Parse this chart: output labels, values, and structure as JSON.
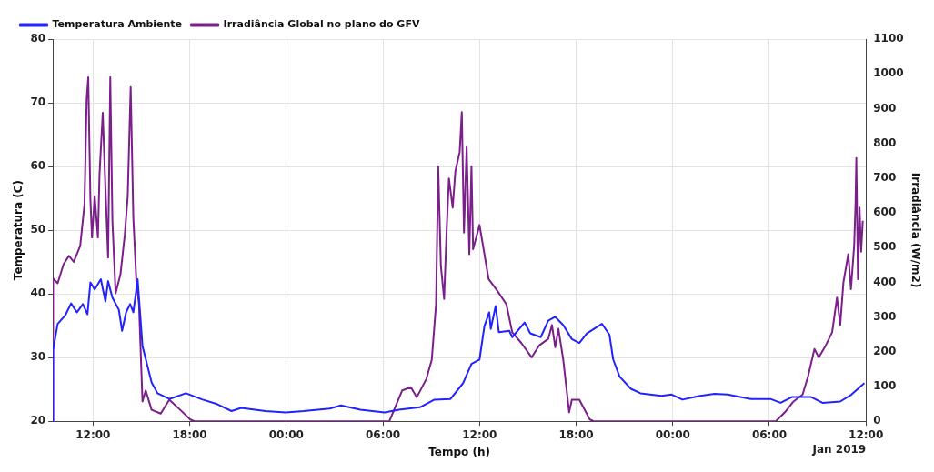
{
  "chart_data": {
    "type": "line",
    "xlabel": "Tempo (h)",
    "ylabel": "Temperatura (C)",
    "y2label": "Irradiância (W/m2)",
    "annotations": [
      "Jan 2019"
    ],
    "xlim": [
      "2019-01-01T09:30",
      "2019-01-03T12:00"
    ],
    "xticks": [
      {
        "value": "2019-01-01T12:00",
        "label": "12:00"
      },
      {
        "value": "2019-01-01T18:00",
        "label": "18:00"
      },
      {
        "value": "2019-01-02T00:00",
        "label": "00:00"
      },
      {
        "value": "2019-01-02T06:00",
        "label": "06:00"
      },
      {
        "value": "2019-01-02T12:00",
        "label": "12:00"
      },
      {
        "value": "2019-01-02T18:00",
        "label": "18:00"
      },
      {
        "value": "2019-01-03T00:00",
        "label": "00:00"
      },
      {
        "value": "2019-01-03T06:00",
        "label": "06:00"
      },
      {
        "value": "2019-01-03T12:00",
        "label": "12:00"
      }
    ],
    "ylim": [
      20,
      80
    ],
    "yticks": [
      20,
      30,
      40,
      50,
      60,
      70,
      80
    ],
    "y2lim": [
      0,
      1100
    ],
    "y2ticks": [
      0,
      100,
      200,
      300,
      400,
      500,
      600,
      700,
      800,
      900,
      1000,
      1100
    ],
    "grid": true,
    "legend": "top left",
    "marker": "none",
    "line_style": "solid",
    "series": [
      {
        "name": "Temperatura Ambiente",
        "color": "#2222ff",
        "x": [
          "2019-01-01T09:30",
          "2019-01-01T09:31",
          "2019-01-01T09:48",
          "2019-01-01T10:16",
          "2019-01-01T10:38",
          "2019-01-01T11:00",
          "2019-01-01T11:22",
          "2019-01-01T11:39",
          "2019-01-01T11:50",
          "2019-01-01T12:06",
          "2019-01-01T12:29",
          "2019-01-01T12:46",
          "2019-01-01T12:56",
          "2019-01-01T13:12",
          "2019-01-01T13:36",
          "2019-01-01T13:48",
          "2019-01-01T14:03",
          "2019-01-01T14:18",
          "2019-01-01T14:30",
          "2019-01-01T14:46",
          "2019-01-01T15:04",
          "2019-01-01T15:38",
          "2019-01-01T16:00",
          "2019-01-01T16:44",
          "2019-01-01T17:46",
          "2019-01-01T18:48",
          "2019-01-01T19:42",
          "2019-01-01T20:36",
          "2019-01-01T21:12",
          "2019-01-01T22:42",
          "2019-01-01T23:58",
          "2019-01-02T01:04",
          "2019-01-02T02:42",
          "2019-01-02T03:24",
          "2019-01-02T04:36",
          "2019-01-02T06:06",
          "2019-01-02T07:00",
          "2019-01-02T08:18",
          "2019-01-02T09:12",
          "2019-01-02T10:12",
          "2019-01-02T10:59",
          "2019-01-02T11:30",
          "2019-01-02T12:00",
          "2019-01-02T12:18",
          "2019-01-02T12:36",
          "2019-01-02T12:42",
          "2019-01-02T13:00",
          "2019-01-02T13:12",
          "2019-01-02T13:51",
          "2019-01-02T14:02",
          "2019-01-02T14:48",
          "2019-01-02T15:09",
          "2019-01-02T15:48",
          "2019-01-02T16:16",
          "2019-01-02T16:42",
          "2019-01-02T17:12",
          "2019-01-02T17:44",
          "2019-01-02T18:12",
          "2019-01-02T18:40",
          "2019-01-02T19:36",
          "2019-01-02T20:04",
          "2019-01-02T20:18",
          "2019-01-02T20:42",
          "2019-01-02T21:24",
          "2019-01-02T22:00",
          "2019-01-02T23:18",
          "2019-01-02T23:56",
          "2019-01-03T00:36",
          "2019-01-03T01:42",
          "2019-01-03T02:36",
          "2019-01-03T03:24",
          "2019-01-03T04:51",
          "2019-01-03T06:04",
          "2019-01-03T06:42",
          "2019-01-03T07:24",
          "2019-01-03T08:36",
          "2019-01-03T09:18",
          "2019-01-03T10:24",
          "2019-01-03T11:06",
          "2019-01-03T11:54"
        ],
        "values": [
          20,
          31.2,
          35.3,
          36.6,
          38.5,
          37.1,
          38.4,
          36.8,
          41.8,
          40.7,
          42.3,
          38.8,
          42.0,
          39.4,
          37.5,
          34.2,
          37.1,
          38.4,
          37.1,
          42.3,
          31.8,
          26.1,
          24.4,
          23.5,
          24.4,
          23.4,
          22.7,
          21.6,
          22.1,
          21.6,
          21.4,
          21.6,
          22.0,
          22.5,
          21.8,
          21.4,
          21.8,
          22.2,
          23.4,
          23.5,
          26.0,
          29.0,
          29.7,
          34.9,
          37.1,
          34.5,
          38.1,
          34.0,
          34.2,
          33.2,
          35.5,
          33.8,
          33.2,
          35.8,
          36.4,
          35.1,
          32.9,
          32.3,
          33.8,
          35.3,
          33.6,
          29.7,
          27.0,
          25.1,
          24.4,
          24.0,
          24.2,
          23.4,
          24.0,
          24.3,
          24.2,
          23.5,
          23.5,
          22.9,
          23.8,
          23.8,
          22.9,
          23.1,
          24.2,
          26.0
        ]
      },
      {
        "name": "Irradiância Global no plano do GFV",
        "color": "#7b1f8a",
        "axis": "y2",
        "x": [
          "2019-01-01T09:30",
          "2019-01-01T09:31",
          "2019-01-01T09:48",
          "2019-01-01T10:10",
          "2019-01-01T10:30",
          "2019-01-01T10:48",
          "2019-01-01T11:12",
          "2019-01-01T11:28",
          "2019-01-01T11:36",
          "2019-01-01T11:42",
          "2019-01-01T11:50",
          "2019-01-01T11:56",
          "2019-01-01T12:06",
          "2019-01-01T12:18",
          "2019-01-01T12:24",
          "2019-01-01T12:36",
          "2019-01-01T12:46",
          "2019-01-01T12:56",
          "2019-01-01T13:04",
          "2019-01-01T13:12",
          "2019-01-01T13:24",
          "2019-01-01T13:42",
          "2019-01-01T13:58",
          "2019-01-01T14:09",
          "2019-01-01T14:20",
          "2019-01-01T14:30",
          "2019-01-01T14:42",
          "2019-01-01T14:51",
          "2019-01-01T15:04",
          "2019-01-01T15:16",
          "2019-01-01T15:38",
          "2019-01-01T16:12",
          "2019-01-01T16:44",
          "2019-01-01T17:30",
          "2019-01-01T18:02",
          "2019-01-01T18:18",
          "2019-01-02T06:24",
          "2019-01-02T07:12",
          "2019-01-02T07:44",
          "2019-01-02T08:06",
          "2019-01-02T08:42",
          "2019-01-02T09:02",
          "2019-01-02T09:18",
          "2019-01-02T09:26",
          "2019-01-02T09:36",
          "2019-01-02T09:48",
          "2019-01-02T09:58",
          "2019-01-02T10:06",
          "2019-01-02T10:20",
          "2019-01-02T10:30",
          "2019-01-02T10:46",
          "2019-01-02T10:54",
          "2019-01-02T11:02",
          "2019-01-02T11:12",
          "2019-01-02T11:22",
          "2019-01-02T11:30",
          "2019-01-02T11:36",
          "2019-01-02T12:00",
          "2019-01-02T12:34",
          "2019-01-02T13:06",
          "2019-01-02T13:40",
          "2019-01-02T14:02",
          "2019-01-02T14:36",
          "2019-01-02T15:14",
          "2019-01-02T15:42",
          "2019-01-02T16:16",
          "2019-01-02T16:30",
          "2019-01-02T16:42",
          "2019-01-02T16:54",
          "2019-01-02T17:12",
          "2019-01-02T17:34",
          "2019-01-02T17:44",
          "2019-01-02T18:12",
          "2019-01-02T18:51",
          "2019-01-02T19:06",
          "2019-01-03T06:24",
          "2019-01-03T06:58",
          "2019-01-03T07:30",
          "2019-01-03T08:04",
          "2019-01-03T08:24",
          "2019-01-03T08:48",
          "2019-01-03T09:04",
          "2019-01-03T09:30",
          "2019-01-03T09:54",
          "2019-01-03T10:12",
          "2019-01-03T10:24",
          "2019-01-03T10:36",
          "2019-01-03T10:54",
          "2019-01-03T11:04",
          "2019-01-03T11:16",
          "2019-01-03T11:21",
          "2019-01-03T11:24",
          "2019-01-03T11:30",
          "2019-01-03T11:36",
          "2019-01-03T11:42",
          "2019-01-03T11:48"
        ],
        "values": [
          0,
          411,
          397,
          452,
          476,
          459,
          505,
          624,
          926,
          990,
          639,
          529,
          648,
          529,
          711,
          888,
          672,
          471,
          990,
          577,
          368,
          423,
          536,
          648,
          962,
          584,
          392,
          337,
          57,
          89,
          33,
          22,
          62,
          29,
          5,
          0,
          0,
          89,
          98,
          69,
          122,
          177,
          337,
          734,
          447,
          352,
          560,
          699,
          615,
          720,
          775,
          890,
          543,
          792,
          481,
          734,
          495,
          565,
          409,
          376,
          337,
          256,
          225,
          184,
          218,
          237,
          277,
          213,
          266,
          177,
          26,
          62,
          62,
          5,
          0,
          0,
          26,
          57,
          77,
          129,
          208,
          184,
          218,
          256,
          356,
          277,
          400,
          481,
          380,
          505,
          624,
          758,
          409,
          615,
          488,
          577
        ]
      }
    ]
  }
}
